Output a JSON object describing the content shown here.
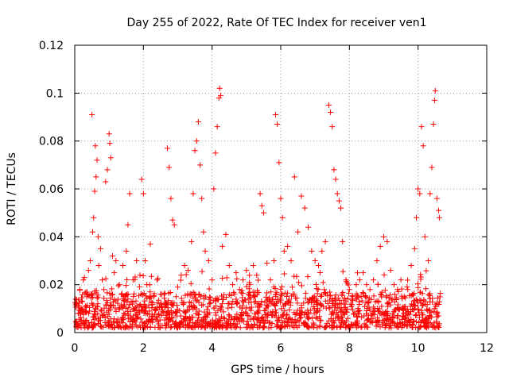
{
  "chart_data": {
    "type": "scatter",
    "title": "Day 255 of 2022, Rate Of TEC Index for receiver ven1",
    "xlabel": "GPS time / hours",
    "ylabel": "ROTI / TECUs",
    "xlim": [
      0,
      12
    ],
    "ylim": [
      0,
      0.12
    ],
    "x_ticks": [
      0,
      2,
      4,
      6,
      8,
      10,
      12
    ],
    "y_ticks": [
      0,
      0.02,
      0.04,
      0.06,
      0.08,
      0.1,
      0.12
    ],
    "x_tick_labels": [
      "0",
      "2",
      "4",
      "6",
      "8",
      "10",
      "12"
    ],
    "y_tick_labels": [
      "0",
      "0.02",
      "0.04",
      "0.06",
      "0.08",
      "0.1",
      "0.12"
    ],
    "grid": true,
    "marker": "+",
    "color": "#ff0000",
    "series": [
      {
        "points": [
          [
            0.05,
            0.012
          ],
          [
            0.1,
            0.008
          ],
          [
            0.15,
            0.018
          ],
          [
            0.2,
            0.01
          ],
          [
            0.25,
            0.022
          ],
          [
            0.3,
            0.009
          ],
          [
            0.35,
            0.015
          ],
          [
            0.4,
            0.026
          ],
          [
            0.45,
            0.03
          ],
          [
            0.5,
            0.091
          ],
          [
            0.52,
            0.042
          ],
          [
            0.55,
            0.048
          ],
          [
            0.58,
            0.059
          ],
          [
            0.6,
            0.078
          ],
          [
            0.62,
            0.065
          ],
          [
            0.65,
            0.072
          ],
          [
            0.68,
            0.04
          ],
          [
            0.7,
            0.028
          ],
          [
            0.75,
            0.035
          ],
          [
            0.8,
            0.022
          ],
          [
            0.85,
            0.018
          ],
          [
            0.9,
            0.063
          ],
          [
            0.95,
            0.068
          ],
          [
            1.0,
            0.083
          ],
          [
            1.02,
            0.079
          ],
          [
            1.05,
            0.073
          ],
          [
            1.1,
            0.032
          ],
          [
            1.15,
            0.025
          ],
          [
            1.2,
            0.03
          ],
          [
            1.3,
            0.02
          ],
          [
            1.4,
            0.028
          ],
          [
            1.5,
            0.034
          ],
          [
            1.55,
            0.045
          ],
          [
            1.6,
            0.058
          ],
          [
            1.7,
            0.022
          ],
          [
            1.8,
            0.03
          ],
          [
            1.9,
            0.024
          ],
          [
            1.95,
            0.064
          ],
          [
            2.0,
            0.058
          ],
          [
            2.05,
            0.03
          ],
          [
            2.1,
            0.02
          ],
          [
            2.2,
            0.037
          ],
          [
            2.3,
            0.015
          ],
          [
            2.4,
            0.022
          ],
          [
            2.5,
            0.012
          ],
          [
            2.6,
            0.016
          ],
          [
            2.7,
            0.077
          ],
          [
            2.75,
            0.069
          ],
          [
            2.8,
            0.056
          ],
          [
            2.85,
            0.047
          ],
          [
            2.9,
            0.045
          ],
          [
            3.0,
            0.019
          ],
          [
            3.1,
            0.024
          ],
          [
            3.2,
            0.028
          ],
          [
            3.3,
            0.026
          ],
          [
            3.4,
            0.038
          ],
          [
            3.45,
            0.058
          ],
          [
            3.5,
            0.076
          ],
          [
            3.55,
            0.08
          ],
          [
            3.6,
            0.088
          ],
          [
            3.65,
            0.07
          ],
          [
            3.7,
            0.056
          ],
          [
            3.75,
            0.042
          ],
          [
            3.8,
            0.034
          ],
          [
            3.9,
            0.03
          ],
          [
            4.0,
            0.022
          ],
          [
            4.05,
            0.06
          ],
          [
            4.1,
            0.075
          ],
          [
            4.15,
            0.086
          ],
          [
            4.2,
            0.098
          ],
          [
            4.22,
            0.102
          ],
          [
            4.25,
            0.099
          ],
          [
            4.3,
            0.036
          ],
          [
            4.4,
            0.041
          ],
          [
            4.5,
            0.028
          ],
          [
            4.6,
            0.02
          ],
          [
            4.7,
            0.025
          ],
          [
            4.8,
            0.018
          ],
          [
            4.9,
            0.022
          ],
          [
            5.0,
            0.026
          ],
          [
            5.1,
            0.02
          ],
          [
            5.2,
            0.028
          ],
          [
            5.3,
            0.024
          ],
          [
            5.4,
            0.058
          ],
          [
            5.45,
            0.053
          ],
          [
            5.5,
            0.05
          ],
          [
            5.6,
            0.029
          ],
          [
            5.7,
            0.022
          ],
          [
            5.8,
            0.03
          ],
          [
            5.85,
            0.091
          ],
          [
            5.9,
            0.087
          ],
          [
            5.95,
            0.071
          ],
          [
            6.0,
            0.056
          ],
          [
            6.05,
            0.048
          ],
          [
            6.1,
            0.034
          ],
          [
            6.2,
            0.036
          ],
          [
            6.3,
            0.03
          ],
          [
            6.4,
            0.065
          ],
          [
            6.5,
            0.042
          ],
          [
            6.6,
            0.057
          ],
          [
            6.7,
            0.052
          ],
          [
            6.8,
            0.044
          ],
          [
            6.9,
            0.034
          ],
          [
            7.0,
            0.03
          ],
          [
            7.1,
            0.028
          ],
          [
            7.2,
            0.034
          ],
          [
            7.3,
            0.038
          ],
          [
            7.4,
            0.095
          ],
          [
            7.45,
            0.092
          ],
          [
            7.5,
            0.086
          ],
          [
            7.55,
            0.068
          ],
          [
            7.6,
            0.064
          ],
          [
            7.65,
            0.058
          ],
          [
            7.7,
            0.055
          ],
          [
            7.75,
            0.052
          ],
          [
            7.8,
            0.038
          ],
          [
            7.9,
            0.022
          ],
          [
            8.0,
            0.018
          ],
          [
            8.1,
            0.015
          ],
          [
            8.2,
            0.02
          ],
          [
            8.3,
            0.022
          ],
          [
            8.4,
            0.025
          ],
          [
            8.5,
            0.02
          ],
          [
            8.6,
            0.018
          ],
          [
            8.7,
            0.022
          ],
          [
            8.8,
            0.03
          ],
          [
            8.9,
            0.036
          ],
          [
            9.0,
            0.04
          ],
          [
            9.1,
            0.038
          ],
          [
            9.2,
            0.026
          ],
          [
            9.3,
            0.02
          ],
          [
            9.4,
            0.018
          ],
          [
            9.5,
            0.022
          ],
          [
            9.6,
            0.015
          ],
          [
            9.7,
            0.018
          ],
          [
            9.8,
            0.028
          ],
          [
            9.9,
            0.035
          ],
          [
            9.95,
            0.048
          ],
          [
            10.0,
            0.06
          ],
          [
            10.05,
            0.058
          ],
          [
            10.1,
            0.086
          ],
          [
            10.15,
            0.078
          ],
          [
            10.2,
            0.04
          ],
          [
            10.3,
            0.03
          ],
          [
            10.35,
            0.058
          ],
          [
            10.4,
            0.069
          ],
          [
            10.45,
            0.087
          ],
          [
            10.48,
            0.097
          ],
          [
            10.5,
            0.101
          ],
          [
            10.55,
            0.056
          ],
          [
            10.6,
            0.051
          ],
          [
            10.62,
            0.048
          ]
        ]
      }
    ],
    "dense_band": {
      "x_range": [
        0,
        10.65
      ],
      "y_range": [
        0.002,
        0.017
      ],
      "approx_points": 1500
    }
  }
}
